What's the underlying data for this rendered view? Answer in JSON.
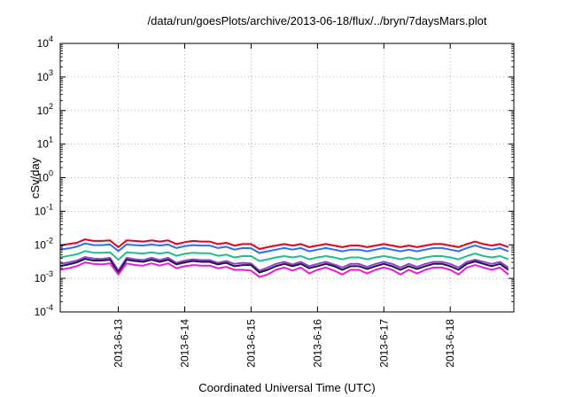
{
  "chart_data": {
    "type": "line",
    "title": "/data/run/goesPlots/archive/2013-06-18/flux/../bryn/7daysMars.plot",
    "xlabel": "Coordinated Universal Time (UTC)",
    "ylabel": "cSv/day",
    "yscale": "log",
    "ylim": [
      0.0001,
      10000
    ],
    "xlim": [
      "2013-06-12 03:00",
      "2013-06-18 23:00"
    ],
    "grid": "dotted",
    "legend": "none",
    "x_tick_labels": [
      "2013-6-13",
      "2013-6-14",
      "2013-6-15",
      "2013-6-16",
      "2013-6-17",
      "2013-6-18"
    ],
    "y_ticks": [
      {
        "base": "10",
        "exp": "4"
      },
      {
        "base": "10",
        "exp": "3"
      },
      {
        "base": "10",
        "exp": "2"
      },
      {
        "base": "10",
        "exp": "1"
      },
      {
        "base": "10",
        "exp": "0"
      },
      {
        "base": "10",
        "exp": "-1"
      },
      {
        "base": "10",
        "exp": "-2"
      },
      {
        "base": "10",
        "exp": "-3"
      },
      {
        "base": "10",
        "exp": "-4"
      }
    ],
    "x": [
      "2013-06-12 03:00",
      "2013-06-12 06:00",
      "2013-06-12 09:00",
      "2013-06-12 12:00",
      "2013-06-12 15:00",
      "2013-06-12 18:00",
      "2013-06-12 21:00",
      "2013-06-13 00:00",
      "2013-06-13 03:00",
      "2013-06-13 06:00",
      "2013-06-13 09:00",
      "2013-06-13 12:00",
      "2013-06-13 15:00",
      "2013-06-13 18:00",
      "2013-06-13 21:00",
      "2013-06-14 00:00",
      "2013-06-14 03:00",
      "2013-06-14 06:00",
      "2013-06-14 09:00",
      "2013-06-14 12:00",
      "2013-06-14 15:00",
      "2013-06-14 18:00",
      "2013-06-14 21:00",
      "2013-06-15 00:00",
      "2013-06-15 03:00",
      "2013-06-15 06:00",
      "2013-06-15 09:00",
      "2013-06-15 12:00",
      "2013-06-15 15:00",
      "2013-06-15 18:00",
      "2013-06-15 21:00",
      "2013-06-16 00:00",
      "2013-06-16 03:00",
      "2013-06-16 06:00",
      "2013-06-16 09:00",
      "2013-06-16 12:00",
      "2013-06-16 15:00",
      "2013-06-16 18:00",
      "2013-06-16 21:00",
      "2013-06-17 00:00",
      "2013-06-17 03:00",
      "2013-06-17 06:00",
      "2013-06-17 09:00",
      "2013-06-17 12:00",
      "2013-06-17 15:00",
      "2013-06-17 18:00",
      "2013-06-17 21:00",
      "2013-06-18 00:00",
      "2013-06-18 03:00",
      "2013-06-18 06:00",
      "2013-06-18 09:00",
      "2013-06-18 12:00",
      "2013-06-18 15:00",
      "2013-06-18 18:00",
      "2013-06-18 21:00"
    ],
    "series": [
      {
        "color": "#e8001c",
        "values": [
          0.0095,
          0.0105,
          0.0115,
          0.0145,
          0.013,
          0.013,
          0.0135,
          0.0085,
          0.0135,
          0.013,
          0.0125,
          0.0135,
          0.0125,
          0.0135,
          0.0105,
          0.012,
          0.013,
          0.0125,
          0.0125,
          0.0105,
          0.0115,
          0.0095,
          0.0105,
          0.0105,
          0.0075,
          0.0085,
          0.0095,
          0.0105,
          0.0095,
          0.0105,
          0.0085,
          0.0095,
          0.0105,
          0.0095,
          0.0085,
          0.0095,
          0.0095,
          0.0085,
          0.0095,
          0.0105,
          0.0095,
          0.0085,
          0.0095,
          0.0085,
          0.0095,
          0.0105,
          0.0105,
          0.0095,
          0.0085,
          0.0105,
          0.0125,
          0.0105,
          0.0095,
          0.0105,
          0.0085
        ]
      },
      {
        "color": "#2f6fe8",
        "values": [
          0.0072,
          0.0078,
          0.0088,
          0.011,
          0.0098,
          0.0098,
          0.0102,
          0.0065,
          0.0102,
          0.0098,
          0.0095,
          0.0102,
          0.0095,
          0.0102,
          0.008,
          0.0091,
          0.0098,
          0.0095,
          0.0095,
          0.008,
          0.0087,
          0.0072,
          0.008,
          0.0079,
          0.0057,
          0.0064,
          0.0072,
          0.008,
          0.0072,
          0.008,
          0.0064,
          0.0072,
          0.008,
          0.0072,
          0.0064,
          0.0072,
          0.0072,
          0.0064,
          0.0072,
          0.008,
          0.0072,
          0.0064,
          0.0072,
          0.0064,
          0.0072,
          0.008,
          0.008,
          0.0072,
          0.0064,
          0.008,
          0.0095,
          0.008,
          0.0072,
          0.008,
          0.0064
        ]
      },
      {
        "color": "#1fbf8a",
        "values": [
          0.0042,
          0.0047,
          0.0052,
          0.0065,
          0.0058,
          0.0058,
          0.006,
          0.0036,
          0.006,
          0.0057,
          0.0055,
          0.006,
          0.0055,
          0.006,
          0.0047,
          0.0054,
          0.0058,
          0.0056,
          0.0056,
          0.0047,
          0.0051,
          0.0042,
          0.0046,
          0.0046,
          0.0033,
          0.0037,
          0.0042,
          0.0046,
          0.0042,
          0.0046,
          0.0037,
          0.0042,
          0.0046,
          0.0042,
          0.0037,
          0.0042,
          0.0042,
          0.0037,
          0.0042,
          0.0046,
          0.0042,
          0.0037,
          0.0042,
          0.0037,
          0.0042,
          0.0046,
          0.0046,
          0.0042,
          0.0037,
          0.0046,
          0.0055,
          0.0046,
          0.0042,
          0.0046,
          0.0037
        ]
      },
      {
        "color": "#9a3fc8",
        "values": [
          0.0027,
          0.003,
          0.0034,
          0.0043,
          0.0039,
          0.0038,
          0.0041,
          0.0017,
          0.0041,
          0.0037,
          0.0035,
          0.0041,
          0.0035,
          0.0041,
          0.0029,
          0.0034,
          0.0037,
          0.0035,
          0.0035,
          0.0029,
          0.0033,
          0.0027,
          0.0029,
          0.0028,
          0.0017,
          0.0021,
          0.0027,
          0.0031,
          0.0026,
          0.0031,
          0.0023,
          0.0027,
          0.0031,
          0.0026,
          0.0021,
          0.0027,
          0.0027,
          0.0022,
          0.0027,
          0.0031,
          0.0027,
          0.0021,
          0.0027,
          0.0022,
          0.0027,
          0.0031,
          0.0031,
          0.0027,
          0.0021,
          0.0031,
          0.0036,
          0.0031,
          0.0027,
          0.0031,
          0.0021
        ]
      },
      {
        "color": "#1a1a4a",
        "values": [
          0.0023,
          0.0026,
          0.003,
          0.0038,
          0.0034,
          0.0034,
          0.0036,
          0.0015,
          0.0036,
          0.0033,
          0.0031,
          0.0036,
          0.0031,
          0.0036,
          0.0026,
          0.003,
          0.0033,
          0.0031,
          0.0031,
          0.0026,
          0.0029,
          0.0023,
          0.0025,
          0.0025,
          0.0015,
          0.0018,
          0.0023,
          0.0027,
          0.0023,
          0.0027,
          0.002,
          0.0023,
          0.0027,
          0.0023,
          0.0018,
          0.0023,
          0.0023,
          0.0019,
          0.0023,
          0.0027,
          0.0023,
          0.0018,
          0.0023,
          0.0019,
          0.0023,
          0.0027,
          0.0027,
          0.0023,
          0.0018,
          0.0027,
          0.0032,
          0.0027,
          0.0023,
          0.0027,
          0.0018
        ]
      },
      {
        "color": "#e81cd8",
        "values": [
          0.0018,
          0.002,
          0.0023,
          0.003,
          0.0027,
          0.0026,
          0.0028,
          0.0013,
          0.0028,
          0.0025,
          0.0024,
          0.0028,
          0.0024,
          0.0028,
          0.002,
          0.0023,
          0.0025,
          0.0024,
          0.0024,
          0.002,
          0.0022,
          0.0018,
          0.0018,
          0.0017,
          0.0011,
          0.0013,
          0.0018,
          0.0021,
          0.0017,
          0.0021,
          0.0014,
          0.0018,
          0.0021,
          0.0017,
          0.0013,
          0.0018,
          0.0018,
          0.0014,
          0.0018,
          0.0021,
          0.0018,
          0.0013,
          0.0018,
          0.0014,
          0.0018,
          0.0021,
          0.0021,
          0.0018,
          0.0013,
          0.0021,
          0.0025,
          0.0021,
          0.0018,
          0.0021,
          0.0013
        ]
      }
    ]
  }
}
